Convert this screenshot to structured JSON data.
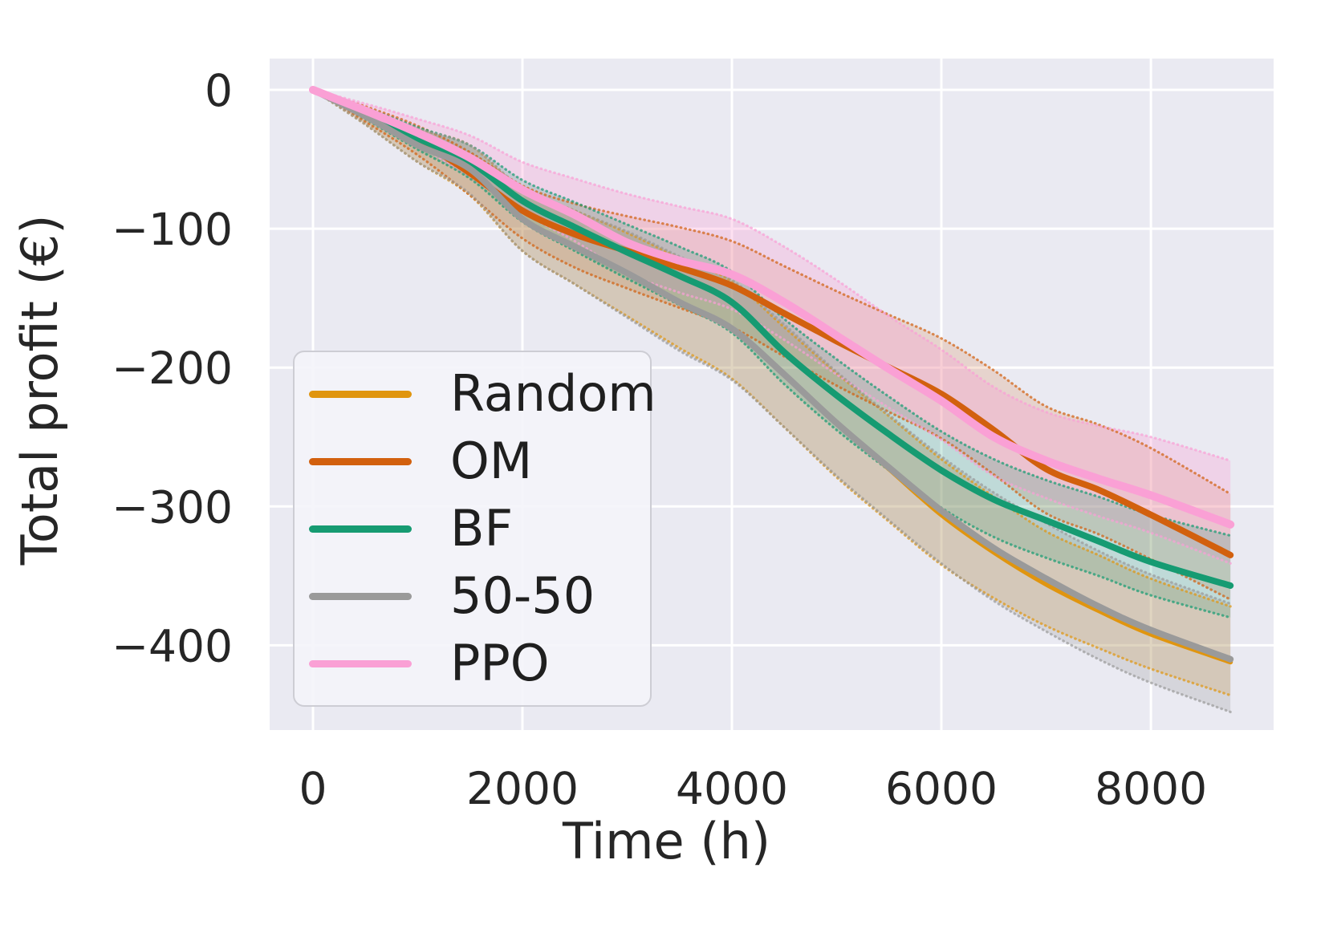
{
  "figure": {
    "background": "#ffffff",
    "plot_background": "#eaeaf2",
    "grid_color": "#ffffff",
    "text_color": "#262626"
  },
  "axes": {
    "xlabel": "Time (h)",
    "ylabel": "Total profit (€)",
    "x_ticks": [
      {
        "value": 0,
        "label": "0"
      },
      {
        "value": 2000,
        "label": "2000"
      },
      {
        "value": 4000,
        "label": "4000"
      },
      {
        "value": 6000,
        "label": "6000"
      },
      {
        "value": 8000,
        "label": "8000"
      }
    ],
    "y_ticks": [
      {
        "value": 0,
        "label": "0"
      },
      {
        "value": -100,
        "label": "−100"
      },
      {
        "value": -200,
        "label": "−200"
      },
      {
        "value": -300,
        "label": "−300"
      },
      {
        "value": -400,
        "label": "−400"
      }
    ]
  },
  "legend": {
    "items": [
      {
        "label": "Random",
        "color": "#e0950f"
      },
      {
        "label": "OM",
        "color": "#d2600e"
      },
      {
        "label": "BF",
        "color": "#169b72"
      },
      {
        "label": "50-50",
        "color": "#9a9a9a"
      },
      {
        "label": "PPO",
        "color": "#faa0d5"
      }
    ]
  },
  "chart_data": {
    "type": "line",
    "title": "",
    "xlabel": "Time (h)",
    "ylabel": "Total profit (€)",
    "grid": true,
    "legend_position": "lower left",
    "xlim": [
      -414,
      9172
    ],
    "ylim": [
      -461,
      22.5
    ],
    "x": [
      0,
      500,
      1000,
      1500,
      2000,
      2500,
      3000,
      3500,
      4000,
      4500,
      5000,
      5500,
      6000,
      6500,
      7000,
      7500,
      8000,
      8760
    ],
    "series": [
      {
        "name": "Random",
        "color": "#e0950f",
        "fill": "rgba(224,149,15,0.20)",
        "line_width": 6,
        "values": [
          0,
          -19,
          -40,
          -57,
          -93,
          -113,
          -132,
          -153,
          -172,
          -205,
          -240,
          -273,
          -306,
          -333,
          -356,
          -375,
          -392,
          -412
        ],
        "hi": [
          0,
          -13,
          -28,
          -40,
          -72,
          -87,
          -103,
          -121,
          -138,
          -171,
          -204,
          -235,
          -266,
          -293,
          -318,
          -335,
          -352,
          -372
        ],
        "lo": [
          0,
          -25,
          -52,
          -76,
          -116,
          -140,
          -163,
          -186,
          -208,
          -243,
          -279,
          -311,
          -342,
          -366,
          -386,
          -402,
          -417,
          -436
        ]
      },
      {
        "name": "OM",
        "color": "#d2600e",
        "fill": "rgba(210,96,14,0.16)",
        "line_width": 8,
        "values": [
          0,
          -17,
          -36,
          -60,
          -87,
          -104,
          -116,
          -128,
          -141,
          -161,
          -181,
          -200,
          -219,
          -245,
          -273,
          -288,
          -306,
          -335
        ],
        "hi": [
          0,
          -12,
          -26,
          -45,
          -69,
          -82,
          -91,
          -99,
          -109,
          -127,
          -145,
          -162,
          -179,
          -202,
          -228,
          -241,
          -258,
          -291
        ],
        "lo": [
          0,
          -23,
          -47,
          -76,
          -107,
          -128,
          -143,
          -157,
          -171,
          -192,
          -213,
          -232,
          -251,
          -277,
          -305,
          -320,
          -338,
          -367
        ]
      },
      {
        "name": "BF",
        "color": "#169b72",
        "fill": "rgba(22,155,114,0.20)",
        "line_width": 8,
        "values": [
          0,
          -17,
          -35,
          -52,
          -80,
          -99,
          -117,
          -134,
          -153,
          -189,
          -220,
          -248,
          -274,
          -295,
          -310,
          -325,
          -340,
          -357
        ],
        "hi": [
          0,
          -13,
          -27,
          -40,
          -65,
          -81,
          -97,
          -113,
          -131,
          -165,
          -194,
          -221,
          -246,
          -266,
          -281,
          -293,
          -306,
          -321
        ],
        "lo": [
          0,
          -21,
          -43,
          -64,
          -95,
          -116,
          -136,
          -155,
          -175,
          -212,
          -245,
          -274,
          -301,
          -322,
          -337,
          -350,
          -364,
          -380
        ]
      },
      {
        "name": "50-50",
        "color": "#9a9a9a",
        "fill": "rgba(153,153,153,0.25)",
        "line_width": 8,
        "values": [
          0,
          -19,
          -40,
          -57,
          -93,
          -113,
          -132,
          -153,
          -172,
          -205,
          -240,
          -272,
          -303,
          -330,
          -352,
          -372,
          -389,
          -410
        ],
        "hi": [
          0,
          -13,
          -28,
          -40,
          -71,
          -87,
          -102,
          -120,
          -137,
          -169,
          -203,
          -234,
          -264,
          -290,
          -312,
          -332,
          -349,
          -370
        ],
        "lo": [
          0,
          -25,
          -52,
          -75,
          -116,
          -140,
          -164,
          -188,
          -209,
          -243,
          -278,
          -310,
          -341,
          -368,
          -390,
          -410,
          -427,
          -448
        ]
      },
      {
        "name": "PPO",
        "color": "#faa0d5",
        "fill": "rgba(250,160,213,0.32)",
        "line_width": 10,
        "values": [
          0,
          -15,
          -31,
          -49,
          -72,
          -90,
          -110,
          -123,
          -133,
          -153,
          -177,
          -201,
          -224,
          -250,
          -267,
          -280,
          -292,
          -313
        ],
        "hi": [
          0,
          -10,
          -21,
          -33,
          -52,
          -64,
          -75,
          -84,
          -93,
          -113,
          -137,
          -163,
          -187,
          -214,
          -232,
          -242,
          -250,
          -267
        ],
        "lo": [
          0,
          -20,
          -40,
          -63,
          -88,
          -109,
          -132,
          -146,
          -158,
          -180,
          -205,
          -229,
          -252,
          -278,
          -294,
          -307,
          -319,
          -341
        ]
      }
    ]
  }
}
